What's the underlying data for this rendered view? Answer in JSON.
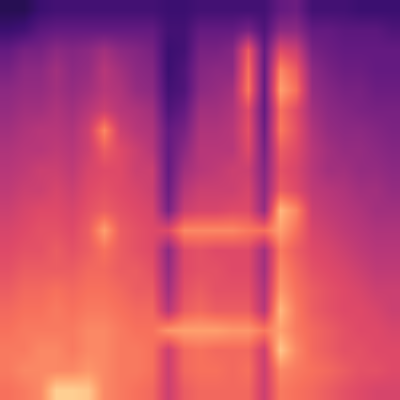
{
  "chart_data": {
    "type": "heatmap",
    "tick_labels": false,
    "zlim": [
      0,
      1
    ],
    "cells": [
      [
        0.15,
        0.15,
        0.2,
        0.22,
        0.22,
        0.22,
        0.22,
        0.22,
        0.22,
        0.22,
        0.2,
        0.2,
        0.22,
        0.22,
        0.22,
        0.22,
        0.22,
        0.3,
        0.32,
        0.22,
        0.22,
        0.22,
        0.2,
        0.2,
        0.2
      ],
      [
        0.2,
        0.22,
        0.28,
        0.3,
        0.3,
        0.3,
        0.3,
        0.3,
        0.3,
        0.3,
        0.22,
        0.22,
        0.3,
        0.3,
        0.3,
        0.35,
        0.25,
        0.4,
        0.4,
        0.3,
        0.3,
        0.28,
        0.28,
        0.28,
        0.25
      ],
      [
        0.3,
        0.35,
        0.35,
        0.4,
        0.38,
        0.4,
        0.45,
        0.4,
        0.38,
        0.35,
        0.2,
        0.22,
        0.35,
        0.35,
        0.38,
        0.65,
        0.3,
        0.6,
        0.55,
        0.35,
        0.32,
        0.3,
        0.3,
        0.3,
        0.3
      ],
      [
        0.35,
        0.4,
        0.4,
        0.45,
        0.4,
        0.42,
        0.5,
        0.45,
        0.4,
        0.38,
        0.2,
        0.25,
        0.38,
        0.4,
        0.4,
        0.7,
        0.3,
        0.75,
        0.65,
        0.4,
        0.35,
        0.32,
        0.32,
        0.3,
        0.3
      ],
      [
        0.4,
        0.42,
        0.42,
        0.45,
        0.42,
        0.45,
        0.5,
        0.48,
        0.42,
        0.4,
        0.22,
        0.25,
        0.4,
        0.42,
        0.45,
        0.72,
        0.3,
        0.8,
        0.7,
        0.42,
        0.38,
        0.35,
        0.35,
        0.32,
        0.32
      ],
      [
        0.42,
        0.45,
        0.45,
        0.48,
        0.45,
        0.5,
        0.55,
        0.5,
        0.48,
        0.45,
        0.25,
        0.3,
        0.45,
        0.45,
        0.48,
        0.6,
        0.3,
        0.7,
        0.6,
        0.45,
        0.4,
        0.38,
        0.36,
        0.35,
        0.35
      ],
      [
        0.45,
        0.48,
        0.5,
        0.5,
        0.48,
        0.55,
        0.75,
        0.55,
        0.5,
        0.48,
        0.3,
        0.35,
        0.48,
        0.48,
        0.5,
        0.62,
        0.32,
        0.72,
        0.62,
        0.48,
        0.42,
        0.4,
        0.4,
        0.38,
        0.36
      ],
      [
        0.48,
        0.5,
        0.5,
        0.52,
        0.5,
        0.55,
        0.65,
        0.6,
        0.55,
        0.5,
        0.3,
        0.4,
        0.5,
        0.5,
        0.5,
        0.6,
        0.35,
        0.65,
        0.6,
        0.5,
        0.45,
        0.42,
        0.42,
        0.4,
        0.38
      ],
      [
        0.5,
        0.52,
        0.55,
        0.55,
        0.52,
        0.58,
        0.6,
        0.6,
        0.55,
        0.55,
        0.3,
        0.45,
        0.5,
        0.52,
        0.55,
        0.55,
        0.38,
        0.62,
        0.58,
        0.5,
        0.45,
        0.45,
        0.42,
        0.42,
        0.4
      ],
      [
        0.52,
        0.55,
        0.55,
        0.58,
        0.55,
        0.6,
        0.62,
        0.6,
        0.58,
        0.55,
        0.32,
        0.5,
        0.55,
        0.55,
        0.55,
        0.58,
        0.4,
        0.65,
        0.6,
        0.52,
        0.5,
        0.48,
        0.45,
        0.45,
        0.42
      ],
      [
        0.55,
        0.58,
        0.6,
        0.6,
        0.58,
        0.62,
        0.65,
        0.62,
        0.6,
        0.58,
        0.35,
        0.55,
        0.58,
        0.58,
        0.6,
        0.6,
        0.42,
        0.85,
        0.75,
        0.55,
        0.52,
        0.5,
        0.48,
        0.45,
        0.45
      ],
      [
        0.58,
        0.6,
        0.62,
        0.62,
        0.6,
        0.65,
        0.8,
        0.65,
        0.62,
        0.6,
        0.6,
        0.75,
        0.75,
        0.75,
        0.75,
        0.72,
        0.7,
        0.8,
        0.7,
        0.58,
        0.55,
        0.52,
        0.5,
        0.48,
        0.48
      ],
      [
        0.6,
        0.62,
        0.62,
        0.65,
        0.62,
        0.65,
        0.7,
        0.65,
        0.62,
        0.6,
        0.4,
        0.6,
        0.62,
        0.6,
        0.6,
        0.6,
        0.45,
        0.72,
        0.65,
        0.6,
        0.58,
        0.55,
        0.52,
        0.5,
        0.5
      ],
      [
        0.62,
        0.65,
        0.65,
        0.65,
        0.65,
        0.68,
        0.68,
        0.65,
        0.65,
        0.62,
        0.42,
        0.6,
        0.62,
        0.62,
        0.6,
        0.6,
        0.45,
        0.75,
        0.68,
        0.62,
        0.6,
        0.58,
        0.55,
        0.52,
        0.52
      ],
      [
        0.65,
        0.68,
        0.68,
        0.7,
        0.68,
        0.7,
        0.7,
        0.68,
        0.65,
        0.65,
        0.45,
        0.62,
        0.65,
        0.62,
        0.62,
        0.62,
        0.48,
        0.78,
        0.7,
        0.65,
        0.62,
        0.6,
        0.58,
        0.55,
        0.55
      ],
      [
        0.68,
        0.7,
        0.7,
        0.72,
        0.7,
        0.72,
        0.72,
        0.7,
        0.68,
        0.68,
        0.5,
        0.65,
        0.68,
        0.65,
        0.65,
        0.65,
        0.5,
        0.85,
        0.72,
        0.65,
        0.62,
        0.6,
        0.6,
        0.58,
        0.55
      ],
      [
        0.7,
        0.72,
        0.72,
        0.72,
        0.72,
        0.75,
        0.75,
        0.72,
        0.7,
        0.7,
        0.78,
        0.8,
        0.8,
        0.8,
        0.78,
        0.78,
        0.72,
        0.8,
        0.72,
        0.68,
        0.65,
        0.62,
        0.6,
        0.6,
        0.58
      ],
      [
        0.72,
        0.72,
        0.75,
        0.75,
        0.72,
        0.75,
        0.75,
        0.72,
        0.72,
        0.7,
        0.55,
        0.68,
        0.7,
        0.68,
        0.68,
        0.68,
        0.55,
        0.88,
        0.75,
        0.68,
        0.65,
        0.62,
        0.62,
        0.6,
        0.6
      ],
      [
        0.72,
        0.75,
        0.75,
        0.75,
        0.75,
        0.78,
        0.75,
        0.72,
        0.72,
        0.7,
        0.55,
        0.68,
        0.7,
        0.7,
        0.68,
        0.7,
        0.55,
        0.75,
        0.72,
        0.7,
        0.68,
        0.65,
        0.62,
        0.62,
        0.6
      ],
      [
        0.7,
        0.72,
        0.75,
        0.9,
        0.9,
        0.88,
        0.75,
        0.72,
        0.7,
        0.68,
        0.55,
        0.65,
        0.68,
        0.68,
        0.68,
        0.68,
        0.55,
        0.72,
        0.7,
        0.68,
        0.65,
        0.62,
        0.6,
        0.58,
        0.58
      ]
    ]
  }
}
